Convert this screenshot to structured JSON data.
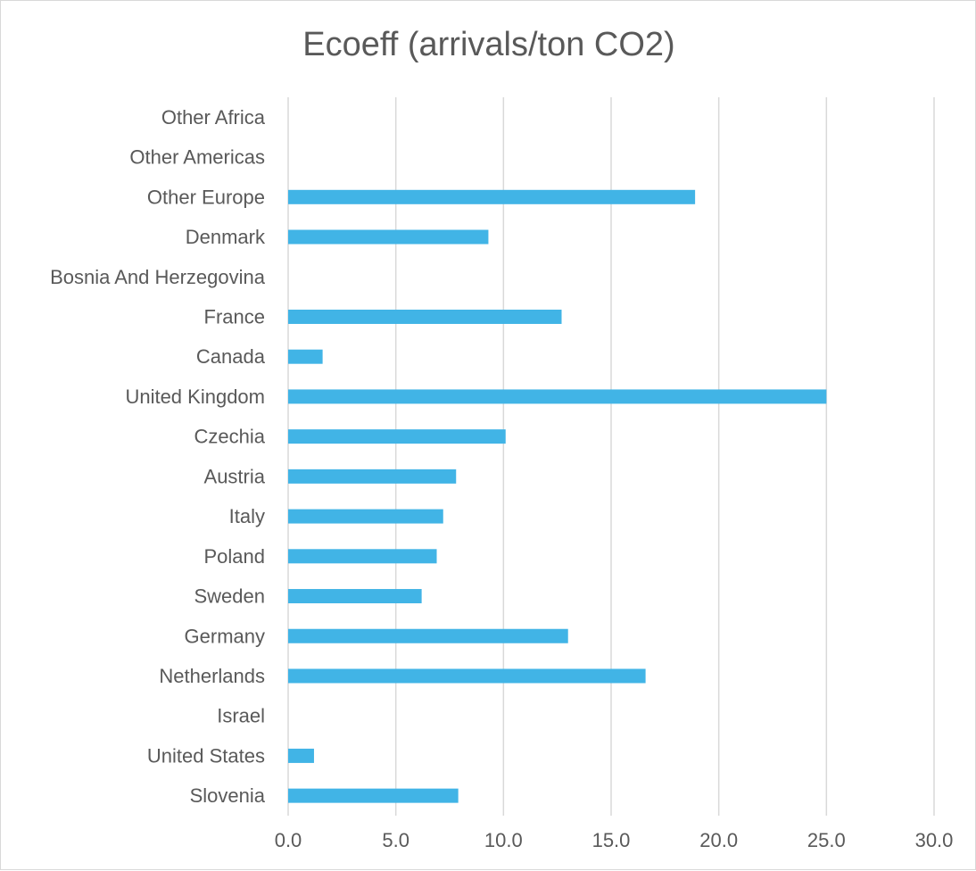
{
  "chart_data": {
    "type": "bar",
    "orientation": "horizontal",
    "title": "Ecoeff (arrivals/ton CO2)",
    "categories": [
      "Slovenia",
      "United States",
      "Israel",
      "Netherlands",
      "Germany",
      "Sweden",
      "Poland",
      "Italy",
      "Austria",
      "Czechia",
      "United Kingdom",
      "Canada",
      "France",
      "Bosnia And Herzegovina",
      "Denmark",
      "Other Europe",
      "Other Americas",
      "Other Africa"
    ],
    "values": [
      7.9,
      1.2,
      0,
      16.6,
      13.0,
      6.2,
      6.9,
      7.2,
      7.8,
      10.1,
      25.0,
      1.6,
      12.7,
      0,
      9.3,
      18.9,
      0,
      0
    ],
    "xlim": [
      0,
      30
    ],
    "xticks": [
      "0.0",
      "5.0",
      "10.0",
      "15.0",
      "20.0",
      "25.0",
      "30.0"
    ],
    "xlabel": "",
    "ylabel": "",
    "grid": true,
    "legend": "none",
    "bar_color": "#41b4e6",
    "grid_color": "#d9d9d9"
  }
}
